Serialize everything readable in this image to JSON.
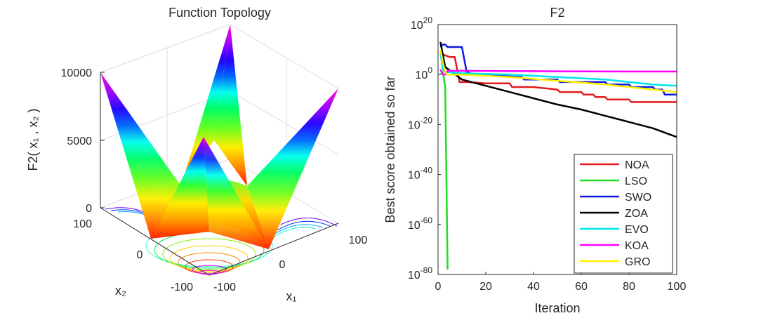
{
  "chart_data": [
    {
      "type": "surface3d",
      "title": "Function Topology",
      "zlabel": "F2( x₁ , x₂ )",
      "xlabel": "x₁",
      "ylabel": "x₂",
      "x_ticks": [
        "-100",
        "0",
        "100"
      ],
      "y_ticks": [
        "-100",
        "0",
        "100"
      ],
      "z_ticks": [
        "0",
        "5000",
        "10000"
      ],
      "x_range": [
        -100,
        100
      ],
      "y_range": [
        -100,
        100
      ],
      "z_range": [
        0,
        10000
      ]
    },
    {
      "type": "line",
      "yscale": "log",
      "title": "F2",
      "xlabel": "Iteration",
      "ylabel": "Best score obtained so far",
      "xlim": [
        0,
        100
      ],
      "ylim_exponent": [
        -80,
        20
      ],
      "x_ticks": [
        "0",
        "20",
        "40",
        "60",
        "80",
        "100"
      ],
      "y_tick_base": "10",
      "y_tick_exponents": [
        "20",
        "0",
        "-20",
        "-40",
        "-60",
        "-80"
      ],
      "legend_location": "bottom-right",
      "series": [
        {
          "name": "NOA",
          "color": "#e41a1c",
          "x": [
            1,
            2,
            5,
            7,
            8,
            9,
            12,
            20,
            30,
            31,
            40,
            50,
            51,
            60,
            61,
            65,
            66,
            70,
            71,
            80,
            81,
            90,
            91,
            100
          ],
          "log10": [
            9,
            8,
            7,
            7,
            2,
            -3,
            -3,
            -3.5,
            -3.5,
            -5,
            -5,
            -6,
            -7,
            -7,
            -8,
            -8,
            -9,
            -9,
            -10,
            -10,
            -11,
            -11,
            -11,
            -11
          ]
        },
        {
          "name": "LSO",
          "color": "#22dd22",
          "x": [
            1,
            2,
            3,
            4
          ],
          "log10": [
            0,
            1,
            -5,
            -78
          ]
        },
        {
          "name": "SWO",
          "color": "#0a1adf",
          "x": [
            1,
            2,
            3,
            4,
            10,
            11,
            12,
            15,
            35,
            36,
            50,
            51,
            70,
            71,
            80,
            81,
            90,
            91,
            94,
            95,
            100
          ],
          "log10": [
            11,
            12,
            12,
            11,
            11,
            6,
            1,
            0,
            -1,
            -2,
            -2,
            -3,
            -3,
            -4,
            -4,
            -5,
            -5,
            -6,
            -6,
            -8,
            -8
          ]
        },
        {
          "name": "ZOA",
          "color": "#000000",
          "x": [
            1,
            2,
            3,
            10,
            20,
            30,
            40,
            50,
            60,
            70,
            80,
            90,
            100
          ],
          "log10": [
            13,
            8,
            3,
            -2,
            -4.5,
            -7,
            -9.5,
            -12,
            -14,
            -16.5,
            -19,
            -21.5,
            -25
          ]
        },
        {
          "name": "EVO",
          "color": "#00e5ee",
          "x": [
            1,
            2,
            3,
            10,
            30,
            50,
            70,
            90,
            100
          ],
          "log10": [
            9,
            2,
            1,
            0.5,
            0,
            -1,
            -2,
            -4,
            -4.5
          ]
        },
        {
          "name": "KOA",
          "color": "#ff00ff",
          "x": [
            1,
            2,
            3,
            4,
            10,
            30,
            50,
            80,
            100
          ],
          "log10": [
            2,
            0,
            0,
            1.5,
            1.5,
            1.4,
            1.3,
            1.2,
            1.2
          ]
        },
        {
          "name": "GRO",
          "color": "#ffef00",
          "x": [
            1,
            2,
            3,
            4,
            10,
            30,
            50,
            70,
            90,
            100
          ],
          "log10": [
            10,
            5,
            1,
            0,
            0,
            -1,
            -2.5,
            -4,
            -6,
            -7
          ]
        }
      ]
    }
  ]
}
